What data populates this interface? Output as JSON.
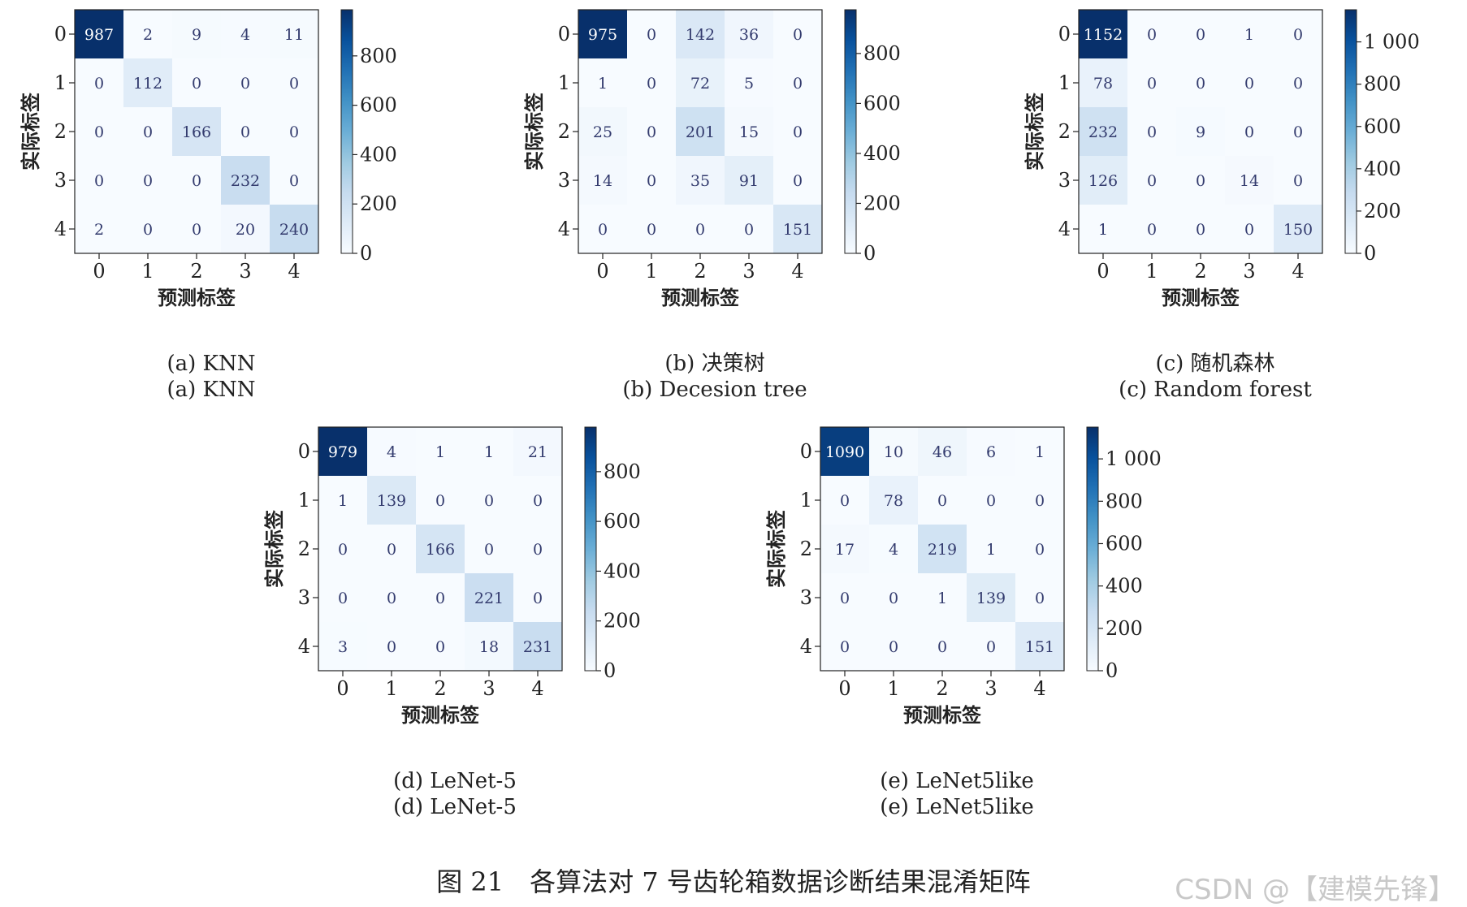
{
  "figure_caption": "图 21　各算法对 7 号齿轮箱数据诊断结果混淆矩阵",
  "watermark": "CSDN @【建模先锋】",
  "colormap": [
    "#f7fbff",
    "#deebf7",
    "#c6dbef",
    "#9ecae1",
    "#6baed6",
    "#4292c6",
    "#2171b5",
    "#08519c",
    "#08306b"
  ],
  "chart_data": [
    {
      "type": "heatmap",
      "caption_line1": "(a) KNN",
      "caption_line2": "(a) KNN",
      "xlabel": "预测标签",
      "ylabel": "实际标签",
      "x_ticks": [
        "0",
        "1",
        "2",
        "3",
        "4"
      ],
      "y_ticks": [
        "0",
        "1",
        "2",
        "3",
        "4"
      ],
      "matrix": [
        [
          987,
          2,
          9,
          4,
          11
        ],
        [
          0,
          112,
          0,
          0,
          0
        ],
        [
          0,
          0,
          166,
          0,
          0
        ],
        [
          0,
          0,
          0,
          232,
          0
        ],
        [
          2,
          0,
          0,
          20,
          240
        ]
      ],
      "vmax": 987,
      "colorbar_ticks": [
        {
          "v": 0,
          "label": "0"
        },
        {
          "v": 200,
          "label": "200"
        },
        {
          "v": 400,
          "label": "400"
        },
        {
          "v": 600,
          "label": "600"
        },
        {
          "v": 800,
          "label": "800"
        }
      ]
    },
    {
      "type": "heatmap",
      "caption_line1": "(b) 决策树",
      "caption_line2": "(b) Decesion tree",
      "xlabel": "预测标签",
      "ylabel": "实际标签",
      "x_ticks": [
        "0",
        "1",
        "2",
        "3",
        "4"
      ],
      "y_ticks": [
        "0",
        "1",
        "2",
        "3",
        "4"
      ],
      "matrix": [
        [
          975,
          0,
          142,
          36,
          0
        ],
        [
          1,
          0,
          72,
          5,
          0
        ],
        [
          25,
          0,
          201,
          15,
          0
        ],
        [
          14,
          0,
          35,
          91,
          0
        ],
        [
          0,
          0,
          0,
          0,
          151
        ]
      ],
      "vmax": 975,
      "colorbar_ticks": [
        {
          "v": 0,
          "label": "0"
        },
        {
          "v": 200,
          "label": "200"
        },
        {
          "v": 400,
          "label": "400"
        },
        {
          "v": 600,
          "label": "600"
        },
        {
          "v": 800,
          "label": "800"
        }
      ]
    },
    {
      "type": "heatmap",
      "caption_line1": "(c) 随机森林",
      "caption_line2": "(c) Random forest",
      "xlabel": "预测标签",
      "ylabel": "实际标签",
      "x_ticks": [
        "0",
        "1",
        "2",
        "3",
        "4"
      ],
      "y_ticks": [
        "0",
        "1",
        "2",
        "3",
        "4"
      ],
      "matrix": [
        [
          1152,
          0,
          0,
          1,
          0
        ],
        [
          78,
          0,
          0,
          0,
          0
        ],
        [
          232,
          0,
          9,
          0,
          0
        ],
        [
          126,
          0,
          0,
          14,
          0
        ],
        [
          1,
          0,
          0,
          0,
          150
        ]
      ],
      "vmax": 1152,
      "colorbar_ticks": [
        {
          "v": 0,
          "label": "0"
        },
        {
          "v": 200,
          "label": "200"
        },
        {
          "v": 400,
          "label": "400"
        },
        {
          "v": 600,
          "label": "600"
        },
        {
          "v": 800,
          "label": "800"
        },
        {
          "v": 1000,
          "label": "1 000"
        }
      ]
    },
    {
      "type": "heatmap",
      "caption_line1": "(d) LeNet-5",
      "caption_line2": "(d) LeNet-5",
      "xlabel": "预测标签",
      "ylabel": "实际标签",
      "x_ticks": [
        "0",
        "1",
        "2",
        "3",
        "4"
      ],
      "y_ticks": [
        "0",
        "1",
        "2",
        "3",
        "4"
      ],
      "matrix": [
        [
          979,
          4,
          1,
          1,
          21
        ],
        [
          1,
          139,
          0,
          0,
          0
        ],
        [
          0,
          0,
          166,
          0,
          0
        ],
        [
          0,
          0,
          0,
          221,
          0
        ],
        [
          3,
          0,
          0,
          18,
          231
        ]
      ],
      "vmax": 979,
      "colorbar_ticks": [
        {
          "v": 0,
          "label": "0"
        },
        {
          "v": 200,
          "label": "200"
        },
        {
          "v": 400,
          "label": "400"
        },
        {
          "v": 600,
          "label": "600"
        },
        {
          "v": 800,
          "label": "800"
        }
      ]
    },
    {
      "type": "heatmap",
      "caption_line1": "(e) LeNet5like",
      "caption_line2": "(e) LeNet5like",
      "xlabel": "预测标签",
      "ylabel": "实际标签",
      "x_ticks": [
        "0",
        "1",
        "2",
        "3",
        "4"
      ],
      "y_ticks": [
        "0",
        "1",
        "2",
        "3",
        "4"
      ],
      "matrix": [
        [
          1090,
          10,
          46,
          6,
          1
        ],
        [
          0,
          78,
          0,
          0,
          0
        ],
        [
          17,
          4,
          219,
          1,
          0
        ],
        [
          0,
          0,
          1,
          139,
          0
        ],
        [
          0,
          0,
          0,
          0,
          151
        ]
      ],
      "vmax": 1150,
      "colorbar_ticks": [
        {
          "v": 0,
          "label": "0"
        },
        {
          "v": 200,
          "label": "200"
        },
        {
          "v": 400,
          "label": "400"
        },
        {
          "v": 600,
          "label": "600"
        },
        {
          "v": 800,
          "label": "800"
        },
        {
          "v": 1000,
          "label": "1 000"
        }
      ]
    }
  ]
}
